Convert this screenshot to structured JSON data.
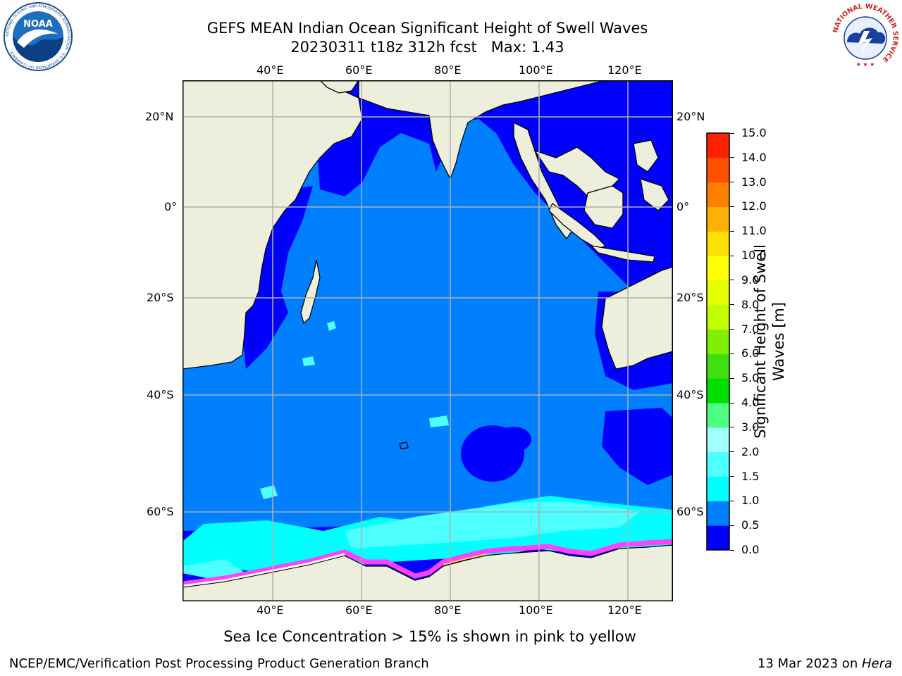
{
  "title": {
    "line1": "GEFS MEAN Indian Ocean Significant Height of Swell Waves",
    "line2": "20230311 t18z 312h fcst   Max: 1.43"
  },
  "logos": {
    "noaa_text": "NOAA",
    "noaa_ring": "NATIONAL OCEANIC AND ATMOSPHERIC ADMINISTRATION · U.S. DEPARTMENT OF COMMERCE",
    "nws_ring": "NATIONAL WEATHER SERVICE"
  },
  "map": {
    "lon_ticks": [
      "40°E",
      "60°E",
      "80°E",
      "100°E",
      "120°E"
    ],
    "lat_ticks": [
      "20°N",
      "0°",
      "20°S",
      "40°S",
      "60°S"
    ],
    "colors": {
      "land": "#eeeedc",
      "deep_blue": "#0000ff",
      "ocean_blue": "#0080ff",
      "cyan": "#00ffff",
      "light_cyan": "#4dffff",
      "ice_pink": "#ff40ff",
      "ice_white": "#ffffff",
      "grid": "#b0b0b0"
    }
  },
  "colorbar": {
    "label_line1": "Significant Height of Swell",
    "label_line2": "Waves [m]",
    "levels": [
      "0.0",
      "0.5",
      "1.0",
      "1.5",
      "2.0",
      "3.0",
      "4.0",
      "5.0",
      "6.0",
      "7.0",
      "8.0",
      "9.0",
      "10.0",
      "11.0",
      "12.0",
      "13.0",
      "14.0",
      "15.0"
    ],
    "colors": [
      "#0000ff",
      "#0080ff",
      "#00ffff",
      "#4dffff",
      "#a0ffff",
      "#4dff80",
      "#00e000",
      "#40e010",
      "#80ef00",
      "#c0ff00",
      "#e6ff00",
      "#ffff00",
      "#ffe000",
      "#ffb000",
      "#ff8000",
      "#ff5000",
      "#ff2000"
    ]
  },
  "caption": "Sea Ice Concentration > 15% is shown in pink to yellow",
  "footer": {
    "left": "NCEP/EMC/Verification Post Processing Product Generation Branch",
    "right_date": "13 Mar 2023 on ",
    "right_host": "Hera"
  }
}
